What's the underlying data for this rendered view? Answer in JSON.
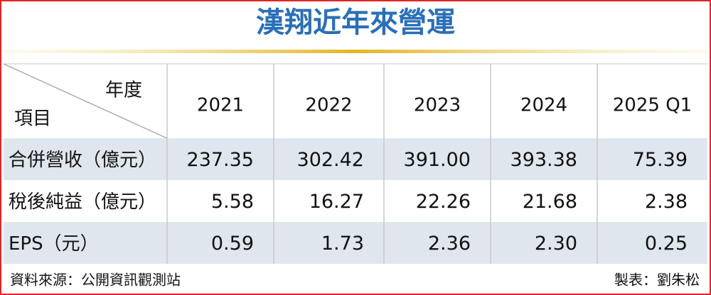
{
  "title": "漢翔近年來營運",
  "table": {
    "corner_top": "年度",
    "corner_bottom": "項目",
    "columns": [
      "2021",
      "2022",
      "2023",
      "2024",
      "2025 Q1"
    ],
    "rows": [
      {
        "label": "合併營收（億元）",
        "values": [
          "237.35",
          "302.42",
          "391.00",
          "393.38",
          "75.39"
        ]
      },
      {
        "label": "稅後純益（億元）",
        "values": [
          "5.58",
          "16.27",
          "22.26",
          "21.68",
          "2.38"
        ]
      },
      {
        "label": "EPS（元）",
        "values": [
          "0.59",
          "1.73",
          "2.36",
          "2.30",
          "0.25"
        ]
      }
    ]
  },
  "footer": {
    "source": "資料來源：公開資訊觀測站",
    "credit": "製表：劉朱松"
  }
}
